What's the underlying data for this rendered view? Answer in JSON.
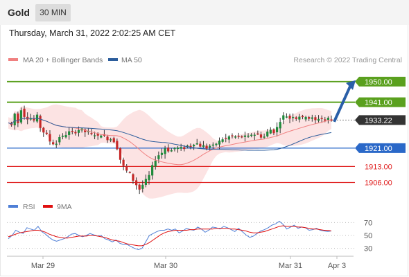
{
  "header": {
    "instrument": "Gold",
    "timeframe": "30 MIN",
    "datetime": "Thursday, March 31, 2022 2:02:25 AM CET"
  },
  "legend": {
    "main": [
      {
        "label": "MA 20 + Bollinger Bands",
        "color": "#f08080"
      },
      {
        "label": "MA 50",
        "color": "#2c5d9c"
      }
    ],
    "credit": "Research © 2022 Trading Central",
    "rsi": [
      {
        "label": "RSI",
        "color": "#4f7fd6"
      },
      {
        "label": "9MA",
        "color": "#e01010"
      }
    ]
  },
  "chart_data": [
    {
      "type": "candlestick",
      "ylim": [
        1898,
        1956
      ],
      "x_ticks": [
        "Mar 29",
        "Mar 30",
        "Mar 31",
        "Apr 3"
      ],
      "current_price": "1933.22",
      "levels": [
        {
          "value": "1950.00",
          "kind": "resistance",
          "color": "#5aa01e"
        },
        {
          "value": "1941.00",
          "kind": "resistance",
          "color": "#5aa01e"
        },
        {
          "value": "1921.00",
          "kind": "pivot",
          "color": "#2a68c8"
        },
        {
          "value": "1913.00",
          "kind": "support",
          "color": "#e02020"
        },
        {
          "value": "1906.00",
          "kind": "support",
          "color": "#e02020"
        }
      ],
      "forecast_arrow": {
        "from": 1932.5,
        "to": 1950,
        "direction": "up"
      },
      "close_path": [
        1932,
        1931,
        1936,
        1932,
        1938,
        1935,
        1934,
        1934,
        1933,
        1935,
        1930,
        1928,
        1927,
        1924,
        1923,
        1923,
        1926,
        1926,
        1927,
        1928,
        1928,
        1928,
        1929,
        1929,
        1928,
        1928,
        1927,
        1927,
        1926,
        1927,
        1926,
        1925,
        1925,
        1924,
        1921,
        1916,
        1913,
        1911,
        1910,
        1907,
        1905,
        1903,
        1905,
        1907,
        1909,
        1913,
        1916,
        1918,
        1919,
        1921,
        1920,
        1920,
        1921,
        1921,
        1921,
        1921,
        1922,
        1922,
        1923,
        1923,
        1922,
        1922,
        1921,
        1922,
        1922,
        1923,
        1924,
        1925,
        1925,
        1926,
        1926,
        1926,
        1926,
        1926,
        1926,
        1926,
        1927,
        1927,
        1927,
        1926,
        1926,
        1928,
        1929,
        1928,
        1930,
        1933,
        1935,
        1935,
        1934,
        1935,
        1934,
        1935,
        1934,
        1935,
        1934,
        1934,
        1933,
        1934,
        1934,
        1933,
        1934,
        1933
      ]
    },
    {
      "type": "line",
      "name": "RSI panel",
      "ylim": [
        20,
        80
      ],
      "y_ticks": [
        "70",
        "50",
        "30"
      ],
      "series": [
        {
          "name": "RSI",
          "color": "#4f7fd6",
          "values": [
            45,
            50,
            58,
            55,
            53,
            62,
            60,
            58,
            64,
            56,
            52,
            47,
            43,
            41,
            43,
            45,
            48,
            52,
            53,
            50,
            48,
            50,
            53,
            51,
            49,
            50,
            45,
            43,
            40,
            43,
            38,
            36,
            36,
            33,
            30,
            28,
            30,
            40,
            50,
            53,
            56,
            58,
            58,
            60,
            58,
            60,
            54,
            57,
            61,
            59,
            58,
            63,
            60,
            55,
            58,
            63,
            62,
            60,
            64,
            62,
            59,
            56,
            61,
            56,
            51,
            47,
            49,
            53,
            57,
            59,
            62,
            66,
            68,
            72,
            67,
            60,
            63,
            66,
            61,
            63,
            62,
            58,
            59,
            61,
            58,
            57,
            56,
            57
          ]
        },
        {
          "name": "9MA",
          "color": "#e01010",
          "values": [
            48,
            50,
            52,
            54,
            55,
            56,
            57,
            58,
            58,
            57,
            55,
            52,
            50,
            48,
            47,
            46,
            46,
            47,
            48,
            49,
            49,
            49,
            50,
            50,
            49,
            48,
            47,
            45,
            43,
            42,
            41,
            39,
            37,
            36,
            35,
            34,
            34,
            36,
            39,
            43,
            47,
            51,
            54,
            56,
            57,
            58,
            58,
            58,
            58,
            59,
            59,
            60,
            60,
            60,
            60,
            60,
            61,
            61,
            61,
            61,
            60,
            60,
            59,
            58,
            57,
            55,
            54,
            54,
            55,
            56,
            58,
            60,
            62,
            64,
            65,
            64,
            64,
            64,
            63,
            63,
            62,
            61,
            60,
            60,
            59,
            58,
            58,
            57
          ]
        }
      ]
    }
  ]
}
